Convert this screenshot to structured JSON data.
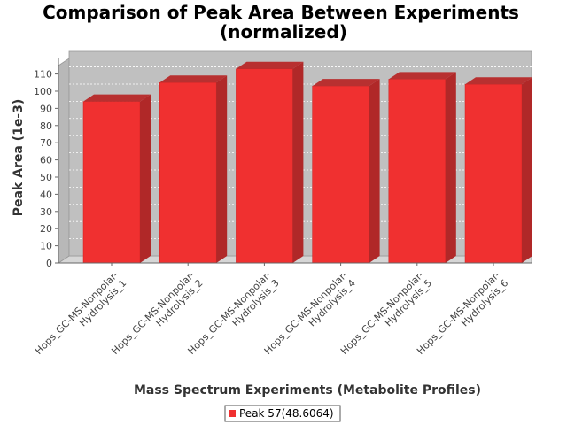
{
  "chart_data": {
    "type": "bar",
    "title_line1": "Comparison of Peak Area Between Experiments",
    "title_line2": "(normalized)",
    "xlabel": "Mass Spectrum Experiments (Metabolite Profiles)",
    "ylabel": "Peak Area (1e-3)",
    "ylim": [
      0,
      110
    ],
    "yticks": [
      0,
      10,
      20,
      30,
      40,
      50,
      60,
      70,
      80,
      90,
      100,
      110
    ],
    "categories": [
      [
        "Hops_GC-MS-Nonpolar-",
        "Hydrolysis_1"
      ],
      [
        "Hops_GC-MS-Nonpolar-",
        "Hydrolysis_2"
      ],
      [
        "Hops_GC-MS-Nonpolar-",
        "Hydrolysis_3"
      ],
      [
        "Hops_GC-MS-Nonpolar-",
        "Hydrolysis_4"
      ],
      [
        "Hops_GC-MS-Nonpolar-",
        "Hydrolysis_5"
      ],
      [
        "Hops_GC-MS-Nonpolar-",
        "Hydrolysis_6"
      ]
    ],
    "series": [
      {
        "name": "Peak 57(48.6064)",
        "values": [
          94,
          105,
          113,
          103,
          107,
          104
        ],
        "color": "#f03030"
      }
    ],
    "grid": true,
    "legend_position": "bottom"
  }
}
